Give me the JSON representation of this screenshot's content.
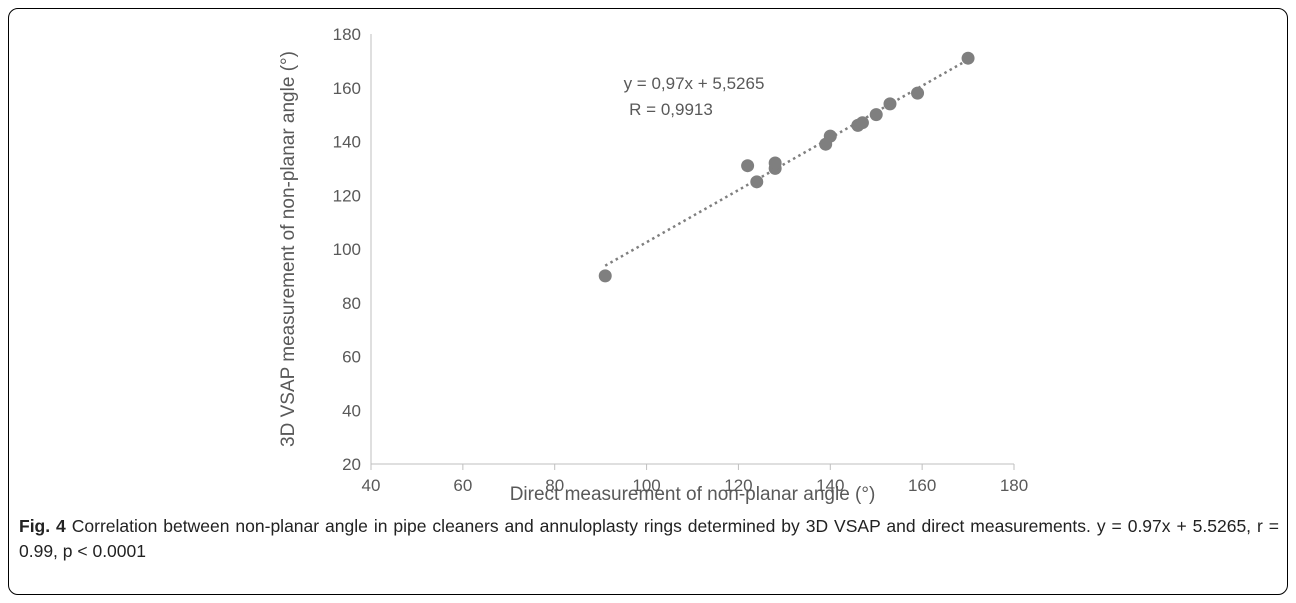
{
  "chart_data": {
    "type": "scatter",
    "title": "",
    "xlabel": "Direct measurement of non-planar angle (°)",
    "ylabel": "3D VSAP measurement of non-planar angle (°)",
    "xlim": [
      40,
      180
    ],
    "ylim": [
      20,
      180
    ],
    "x_ticks": [
      "40",
      "60",
      "80",
      "100",
      "120",
      "140",
      "160",
      "180"
    ],
    "y_ticks": [
      "20",
      "40",
      "60",
      "80",
      "100",
      "120",
      "140",
      "160",
      "180"
    ],
    "grid": false,
    "legend": "none",
    "marker_color": "#7f7f7f",
    "trendline_color": "#7f7f7f",
    "series": [
      {
        "x": [
          91,
          122,
          124,
          128,
          128,
          139,
          140,
          146,
          147,
          150,
          153,
          159,
          170
        ],
        "y": [
          90,
          131,
          125,
          130,
          132,
          139,
          142,
          146,
          147,
          150,
          154,
          158,
          171
        ]
      }
    ],
    "trendline": {
      "slope": 0.97,
      "intercept": 5.5265,
      "x_range": [
        91,
        170
      ],
      "style": "dotted"
    },
    "annotations": {
      "equation": "y = 0,97x + 5,5265",
      "r_value": "R = 0,9913"
    }
  },
  "caption": {
    "label": "Fig. 4",
    "text": " Correlation between non-planar angle in pipe cleaners and annuloplasty rings determined by 3D VSAP and direct measurements. y = 0.97x + 5.5265, r = 0.99, p < 0.0001"
  }
}
